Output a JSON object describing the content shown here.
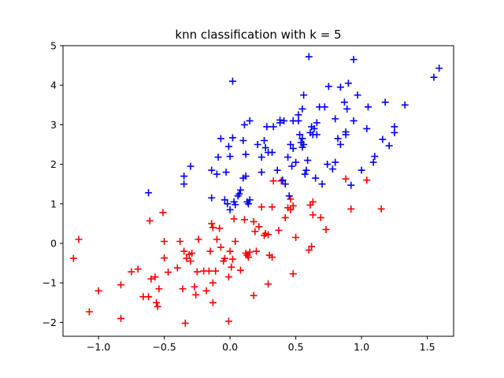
{
  "chart_data": {
    "type": "scatter",
    "title": "knn classification with k = 5",
    "xlabel": "",
    "ylabel": "",
    "xlim": [
      -1.27,
      1.7
    ],
    "ylim": [
      -2.35,
      5.0
    ],
    "x_ticks": [
      -1.0,
      -0.5,
      0.0,
      0.5,
      1.0,
      1.5
    ],
    "x_tick_labels": [
      "−1.0",
      "−0.5",
      "0.0",
      "0.5",
      "1.0",
      "1.5"
    ],
    "y_ticks": [
      -2,
      -1,
      0,
      1,
      2,
      3,
      4,
      5
    ],
    "y_tick_labels": [
      "−2",
      "−1",
      "0",
      "1",
      "2",
      "3",
      "4",
      "5"
    ],
    "grid": false,
    "marker": "plus",
    "series": [
      {
        "color": "#ff0000",
        "points": [
          [
            -1.19,
            -0.38
          ],
          [
            -1.15,
            0.1
          ],
          [
            -1.07,
            -1.73
          ],
          [
            -1.0,
            -1.2
          ],
          [
            -0.83,
            -1.05
          ],
          [
            -0.83,
            -1.9
          ],
          [
            -0.75,
            -0.72
          ],
          [
            -0.7,
            -0.65
          ],
          [
            -0.66,
            -1.35
          ],
          [
            -0.62,
            -1.35
          ],
          [
            -0.6,
            -0.9
          ],
          [
            -0.57,
            -0.85
          ],
          [
            -0.56,
            -1.5
          ],
          [
            -0.55,
            -1.6
          ],
          [
            -0.54,
            -1.15
          ],
          [
            -0.51,
            0.78
          ],
          [
            -0.5,
            0.05
          ],
          [
            -0.5,
            -0.37
          ],
          [
            -0.61,
            0.57
          ],
          [
            -0.47,
            -0.73
          ],
          [
            -0.4,
            -0.62
          ],
          [
            -0.38,
            0.05
          ],
          [
            -0.36,
            -1.15
          ],
          [
            -0.35,
            -0.2
          ],
          [
            -0.34,
            -2.02
          ],
          [
            -0.33,
            -0.38
          ],
          [
            -0.31,
            -0.28
          ],
          [
            -0.3,
            -0.45
          ],
          [
            -0.29,
            -0.25
          ],
          [
            -0.27,
            -1.1
          ],
          [
            -0.26,
            -1.3
          ],
          [
            -0.25,
            -0.72
          ],
          [
            -0.24,
            0.1
          ],
          [
            -0.2,
            -0.7
          ],
          [
            -0.18,
            -1.2
          ],
          [
            -0.16,
            -0.7
          ],
          [
            -0.15,
            -0.2
          ],
          [
            -0.14,
            0.5
          ],
          [
            -0.13,
            -1.0
          ],
          [
            -0.13,
            -1.5
          ],
          [
            -0.13,
            0.4
          ],
          [
            -0.11,
            -0.7
          ],
          [
            -0.1,
            0.1
          ],
          [
            -0.07,
            -0.1
          ],
          [
            -0.05,
            -0.45
          ],
          [
            -0.04,
            -0.38
          ],
          [
            -0.01,
            -1.97
          ],
          [
            -0.01,
            -0.85
          ],
          [
            0.0,
            -0.2
          ],
          [
            0.01,
            -0.6
          ],
          [
            0.02,
            -0.4
          ],
          [
            0.03,
            0.62
          ],
          [
            0.04,
            0.05
          ],
          [
            0.08,
            -0.68
          ],
          [
            0.11,
            0.6
          ],
          [
            0.12,
            -0.25
          ],
          [
            0.13,
            -0.3
          ],
          [
            0.14,
            -0.35
          ],
          [
            0.15,
            -0.22
          ],
          [
            0.18,
            -1.32
          ],
          [
            0.18,
            0.55
          ],
          [
            0.19,
            0.3
          ],
          [
            0.2,
            -0.2
          ],
          [
            0.24,
            0.92
          ],
          [
            0.26,
            0.2
          ],
          [
            0.27,
            0.25
          ],
          [
            0.29,
            0.22
          ],
          [
            0.29,
            -1.03
          ],
          [
            0.3,
            -0.3
          ],
          [
            0.32,
            -0.35
          ],
          [
            0.32,
            0.92
          ],
          [
            0.33,
            1.58
          ],
          [
            0.39,
            1.58
          ],
          [
            0.42,
            0.65
          ],
          [
            0.44,
            0.9
          ],
          [
            0.46,
            1.12
          ],
          [
            0.46,
            0.85
          ],
          [
            0.48,
            -0.77
          ],
          [
            0.48,
            0.95
          ],
          [
            0.6,
            -0.17
          ],
          [
            0.61,
            0.97
          ],
          [
            0.62,
            -0.08
          ],
          [
            0.63,
            0.72
          ],
          [
            0.63,
            1.05
          ],
          [
            0.69,
            0.65
          ],
          [
            0.73,
            0.35
          ],
          [
            0.88,
            1.63
          ],
          [
            0.92,
            0.87
          ],
          [
            1.04,
            1.6
          ],
          [
            1.15,
            0.87
          ],
          [
            0.37,
            0.33
          ],
          [
            0.22,
            0.42
          ],
          [
            -0.08,
            0.38
          ],
          [
            0.5,
            0.15
          ]
        ]
      },
      {
        "color": "#0000ff",
        "points": [
          [
            -0.62,
            1.28
          ],
          [
            -0.35,
            1.5
          ],
          [
            -0.35,
            1.7
          ],
          [
            -0.3,
            1.95
          ],
          [
            -0.14,
            1.85
          ],
          [
            -0.14,
            1.15
          ],
          [
            -0.1,
            1.75
          ],
          [
            -0.09,
            2.18
          ],
          [
            -0.07,
            2.65
          ],
          [
            -0.04,
            1.1
          ],
          [
            -0.02,
            1.0
          ],
          [
            -0.03,
            1.8
          ],
          [
            -0.01,
            2.45
          ],
          [
            0.0,
            2.2
          ],
          [
            0.02,
            4.1
          ],
          [
            0.02,
            2.67
          ],
          [
            0.03,
            1.05
          ],
          [
            0.04,
            0.98
          ],
          [
            0.0,
            0.85
          ],
          [
            0.07,
            1.25
          ],
          [
            0.08,
            1.35
          ],
          [
            0.1,
            2.6
          ],
          [
            0.1,
            1.65
          ],
          [
            0.11,
            3.0
          ],
          [
            0.12,
            2.25
          ],
          [
            0.12,
            1.7
          ],
          [
            0.13,
            1.05
          ],
          [
            0.15,
            3.1
          ],
          [
            0.14,
            1.0
          ],
          [
            0.15,
            1.1
          ],
          [
            0.21,
            2.5
          ],
          [
            0.24,
            2.18
          ],
          [
            0.24,
            1.8
          ],
          [
            0.26,
            2.6
          ],
          [
            0.27,
            2.42
          ],
          [
            0.29,
            2.3
          ],
          [
            0.32,
            2.3
          ],
          [
            0.33,
            2.95
          ],
          [
            0.36,
            1.85
          ],
          [
            0.38,
            3.12
          ],
          [
            0.4,
            1.6
          ],
          [
            0.41,
            3.1
          ],
          [
            0.42,
            1.5
          ],
          [
            0.44,
            2.18
          ],
          [
            0.46,
            2.5
          ],
          [
            0.47,
            1.95
          ],
          [
            0.48,
            2.4
          ],
          [
            0.48,
            3.1
          ],
          [
            0.5,
            2.05
          ],
          [
            0.52,
            3.1
          ],
          [
            0.52,
            3.25
          ],
          [
            0.53,
            2.75
          ],
          [
            0.55,
            3.4
          ],
          [
            0.54,
            2.55
          ],
          [
            0.55,
            2.43
          ],
          [
            0.56,
            3.75
          ],
          [
            0.56,
            2.5
          ],
          [
            0.57,
            1.75
          ],
          [
            0.58,
            1.85
          ],
          [
            0.59,
            2.1
          ],
          [
            0.6,
            4.72
          ],
          [
            0.61,
            2.8
          ],
          [
            0.62,
            2.95
          ],
          [
            0.63,
            2.75
          ],
          [
            0.64,
            2.9
          ],
          [
            0.65,
            1.65
          ],
          [
            0.66,
            3.05
          ],
          [
            0.66,
            2.75
          ],
          [
            0.68,
            3.45
          ],
          [
            0.7,
            1.5
          ],
          [
            0.72,
            3.45
          ],
          [
            0.74,
            2.0
          ],
          [
            0.75,
            3.97
          ],
          [
            0.78,
            1.88
          ],
          [
            0.8,
            2.05
          ],
          [
            0.8,
            3.15
          ],
          [
            0.82,
            2.65
          ],
          [
            0.84,
            2.5
          ],
          [
            0.84,
            3.95
          ],
          [
            0.87,
            3.57
          ],
          [
            0.88,
            2.75
          ],
          [
            0.88,
            2.82
          ],
          [
            0.89,
            3.4
          ],
          [
            0.9,
            4.05
          ],
          [
            0.92,
            1.47
          ],
          [
            0.94,
            4.65
          ],
          [
            0.94,
            3.1
          ],
          [
            0.97,
            3.75
          ],
          [
            1.0,
            1.85
          ],
          [
            1.04,
            2.9
          ],
          [
            1.05,
            3.45
          ],
          [
            1.09,
            2.05
          ],
          [
            1.1,
            2.2
          ],
          [
            1.16,
            2.63
          ],
          [
            1.18,
            3.57
          ],
          [
            1.21,
            2.47
          ],
          [
            1.25,
            2.8
          ],
          [
            1.25,
            2.95
          ],
          [
            1.33,
            3.5
          ],
          [
            1.55,
            4.2
          ],
          [
            1.59,
            4.43
          ],
          [
            0.38,
            3.05
          ],
          [
            0.28,
            2.95
          ],
          [
            0.45,
            1.2
          ],
          [
            0.55,
            2.65
          ],
          [
            0.06,
            1.2
          ]
        ]
      }
    ]
  }
}
